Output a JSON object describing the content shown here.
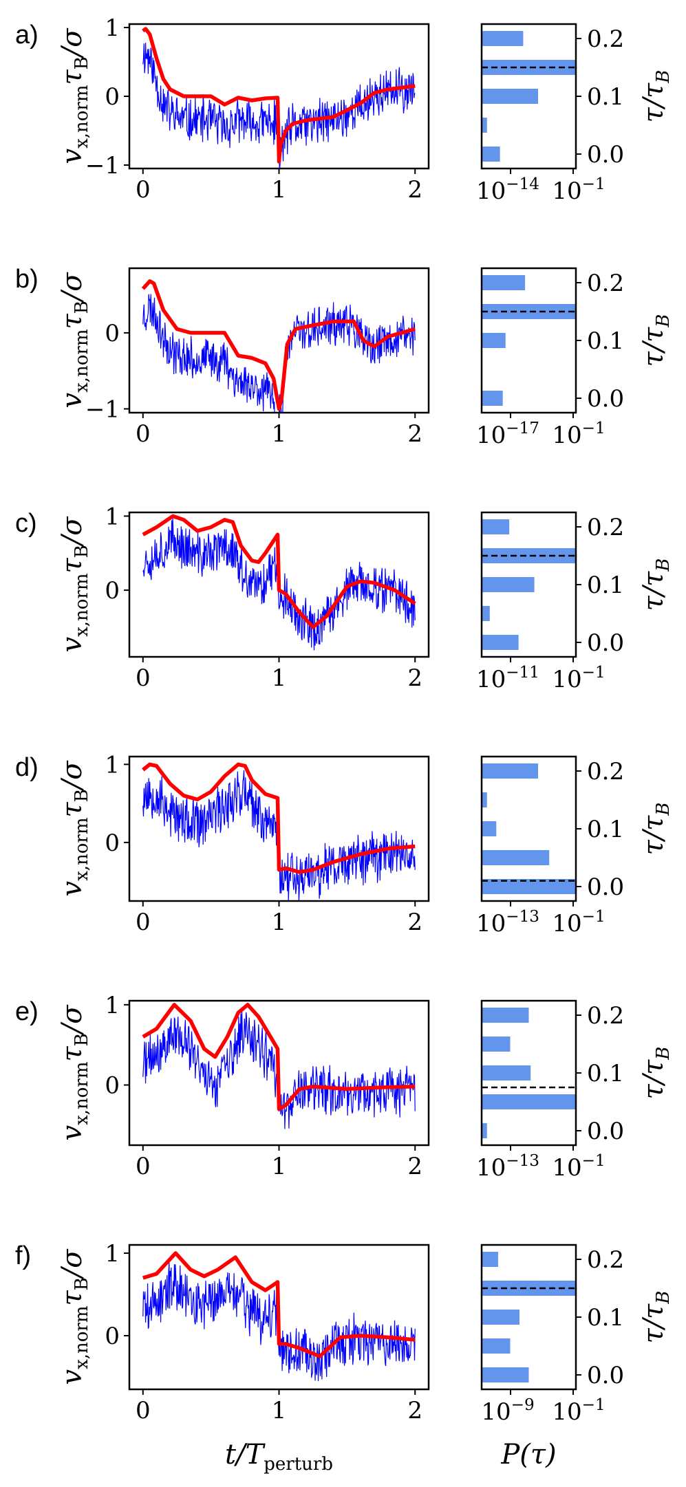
{
  "colors": {
    "noise": "#0000ff",
    "fit": "#ff0000",
    "bar": "#6495ed"
  },
  "chart_data": [
    {
      "type": "line",
      "label": "a)",
      "ylabel": "v_{x,norm} τ_B / σ",
      "xlabel": "",
      "xlim": [
        -0.1,
        2.1
      ],
      "ylim": [
        -1.05,
        1.05
      ],
      "xticks": [
        0,
        1,
        2
      ],
      "xtick_labels": [
        "0",
        "1",
        "2"
      ],
      "yticks": [
        1,
        0,
        -1
      ],
      "ytick_labels": [
        "1",
        "0",
        "−1"
      ],
      "fit": {
        "x": [
          0,
          0.02,
          0.05,
          0.1,
          0.15,
          0.2,
          0.3,
          0.5,
          0.6,
          0.7,
          0.8,
          0.9,
          0.99,
          1.0,
          1.01,
          1.05,
          1.1,
          1.2,
          1.4,
          1.6,
          1.7,
          1.8,
          2.0
        ],
        "y": [
          0.95,
          0.98,
          0.9,
          0.55,
          0.25,
          0.1,
          0.0,
          0.0,
          -0.12,
          -0.02,
          -0.06,
          -0.03,
          -0.02,
          -0.95,
          -0.72,
          -0.5,
          -0.4,
          -0.35,
          -0.3,
          -0.1,
          0.05,
          0.1,
          0.15
        ]
      },
      "noise": {
        "amplitude": 0.3,
        "seed": 11
      },
      "histogram": {
        "xlabel": "",
        "ylabel": "τ / τ_B",
        "xtick_labels": [
          "10^{−14}",
          "10^{−1}"
        ],
        "yticks": [
          0.2,
          0.1,
          0.0
        ],
        "ytick_labels": [
          "0.2",
          "0.1",
          "0.0"
        ],
        "tau": [
          0.0,
          0.05,
          0.1,
          0.15,
          0.2
        ],
        "bar_frac": [
          0.19,
          0.05,
          0.6,
          1.0,
          0.44
        ],
        "dashed_tau": 0.15,
        "ylim": [
          -0.025,
          0.225
        ]
      }
    },
    {
      "type": "line",
      "label": "b)",
      "ylabel": "v_{x,norm} τ_B / σ",
      "xlabel": "",
      "xlim": [
        -0.1,
        2.1
      ],
      "ylim": [
        -1.05,
        0.85
      ],
      "xticks": [
        0,
        1,
        2
      ],
      "xtick_labels": [
        "0",
        "1",
        "2"
      ],
      "yticks": [
        0,
        -1
      ],
      "ytick_labels": [
        "0",
        "−1"
      ],
      "fit": {
        "x": [
          0,
          0.05,
          0.08,
          0.15,
          0.25,
          0.35,
          0.6,
          0.7,
          0.8,
          0.9,
          0.96,
          1.0,
          1.02,
          1.06,
          1.12,
          1.25,
          1.4,
          1.55,
          1.62,
          1.7,
          1.8,
          2.0
        ],
        "y": [
          0.58,
          0.68,
          0.65,
          0.3,
          0.05,
          0.0,
          0.0,
          -0.3,
          -0.33,
          -0.4,
          -0.6,
          -1.0,
          -0.85,
          -0.15,
          0.05,
          0.1,
          0.15,
          0.15,
          -0.1,
          -0.18,
          -0.05,
          0.05
        ]
      },
      "noise": {
        "amplitude": 0.25,
        "seed": 23
      },
      "histogram": {
        "xlabel": "",
        "ylabel": "τ / τ_B",
        "xtick_labels": [
          "10^{−17}",
          "10^{−1}"
        ],
        "yticks": [
          0.2,
          0.1,
          0.0
        ],
        "ytick_labels": [
          "0.2",
          "0.1",
          "0.0"
        ],
        "tau": [
          0.0,
          0.1,
          0.15,
          0.2
        ],
        "bar_frac": [
          0.22,
          0.25,
          1.0,
          0.46
        ],
        "dashed_tau": 0.15,
        "ylim": [
          -0.025,
          0.225
        ]
      }
    },
    {
      "type": "line",
      "label": "c)",
      "ylabel": "v_{x,norm} τ_B / σ",
      "xlabel": "",
      "xlim": [
        -0.1,
        2.1
      ],
      "ylim": [
        -0.9,
        1.05
      ],
      "xticks": [
        0,
        1,
        2
      ],
      "xtick_labels": [
        "0",
        "1",
        "2"
      ],
      "yticks": [
        1,
        0
      ],
      "ytick_labels": [
        "1",
        "0"
      ],
      "fit": {
        "x": [
          0,
          0.1,
          0.22,
          0.3,
          0.4,
          0.5,
          0.6,
          0.66,
          0.72,
          0.8,
          0.85,
          0.9,
          0.99,
          1.0,
          1.05,
          1.15,
          1.25,
          1.35,
          1.5,
          1.6,
          1.7,
          1.85,
          2.0
        ],
        "y": [
          0.75,
          0.85,
          1.0,
          0.95,
          0.8,
          0.85,
          0.95,
          0.92,
          0.6,
          0.4,
          0.38,
          0.5,
          0.75,
          0.0,
          -0.05,
          -0.3,
          -0.5,
          -0.35,
          0.05,
          0.12,
          0.1,
          0.0,
          -0.18
        ]
      },
      "noise": {
        "amplitude": 0.28,
        "seed": 37
      },
      "histogram": {
        "xlabel": "",
        "ylabel": "τ / τ_B",
        "xtick_labels": [
          "10^{−11}",
          "10^{−1}"
        ],
        "yticks": [
          0.2,
          0.1,
          0.0
        ],
        "ytick_labels": [
          "0.2",
          "0.1",
          "0.0"
        ],
        "tau": [
          0.0,
          0.05,
          0.1,
          0.15,
          0.2
        ],
        "bar_frac": [
          0.39,
          0.08,
          0.56,
          1.0,
          0.29
        ],
        "dashed_tau": 0.15,
        "ylim": [
          -0.025,
          0.225
        ]
      }
    },
    {
      "type": "line",
      "label": "d)",
      "ylabel": "v_{x,norm} τ_B / σ",
      "xlabel": "",
      "xlim": [
        -0.1,
        2.1
      ],
      "ylim": [
        -0.75,
        1.1
      ],
      "xticks": [
        0,
        1,
        2
      ],
      "xtick_labels": [
        "0",
        "1",
        "2"
      ],
      "yticks": [
        1,
        0
      ],
      "ytick_labels": [
        "1",
        "0"
      ],
      "fit": {
        "x": [
          0,
          0.05,
          0.1,
          0.2,
          0.3,
          0.4,
          0.5,
          0.6,
          0.7,
          0.75,
          0.8,
          0.9,
          0.99,
          1.0,
          1.05,
          1.15,
          1.25,
          1.4,
          1.6,
          1.8,
          2.0
        ],
        "y": [
          0.93,
          1.0,
          0.98,
          0.75,
          0.6,
          0.55,
          0.65,
          0.85,
          1.0,
          0.98,
          0.8,
          0.62,
          0.57,
          -0.35,
          -0.33,
          -0.38,
          -0.35,
          -0.25,
          -0.15,
          -0.08,
          -0.05
        ]
      },
      "noise": {
        "amplitude": 0.3,
        "seed": 53
      },
      "histogram": {
        "xlabel": "",
        "ylabel": "τ / τ_B",
        "xtick_labels": [
          "10^{−13}",
          "10^{−1}"
        ],
        "yticks": [
          0.2,
          0.1,
          0.0
        ],
        "ytick_labels": [
          "0.2",
          "0.1",
          "0.0"
        ],
        "tau": [
          0.0,
          0.05,
          0.1,
          0.15,
          0.2
        ],
        "bar_frac": [
          1.0,
          0.72,
          0.15,
          0.05,
          0.6
        ],
        "dashed_tau": 0.01,
        "ylim": [
          -0.025,
          0.225
        ]
      }
    },
    {
      "type": "line",
      "label": "e)",
      "ylabel": "v_{x,norm} τ_B / σ",
      "xlabel": "",
      "xlim": [
        -0.1,
        2.1
      ],
      "ylim": [
        -0.75,
        1.05
      ],
      "xticks": [
        0,
        1,
        2
      ],
      "xtick_labels": [
        "0",
        "1",
        "2"
      ],
      "yticks": [
        1,
        0
      ],
      "ytick_labels": [
        "1",
        "0"
      ],
      "fit": {
        "x": [
          0,
          0.1,
          0.23,
          0.35,
          0.45,
          0.53,
          0.62,
          0.7,
          0.77,
          0.85,
          0.92,
          0.99,
          1.0,
          1.05,
          1.15,
          1.25,
          1.5,
          1.75,
          2.0
        ],
        "y": [
          0.6,
          0.7,
          1.0,
          0.8,
          0.45,
          0.35,
          0.6,
          0.9,
          1.0,
          0.85,
          0.65,
          0.45,
          -0.3,
          -0.25,
          -0.05,
          -0.02,
          -0.05,
          -0.03,
          -0.02
        ]
      },
      "noise": {
        "amplitude": 0.28,
        "seed": 71
      },
      "histogram": {
        "xlabel": "",
        "ylabel": "τ / τ_B",
        "xtick_labels": [
          "10^{−13}",
          "10^{−1}"
        ],
        "yticks": [
          0.2,
          0.1,
          0.0
        ],
        "ytick_labels": [
          "0.2",
          "0.1",
          "0.0"
        ],
        "tau": [
          0.0,
          0.05,
          0.1,
          0.15,
          0.2
        ],
        "bar_frac": [
          0.05,
          1.0,
          0.52,
          0.3,
          0.5
        ],
        "dashed_tau": 0.075,
        "ylim": [
          -0.025,
          0.225
        ]
      }
    },
    {
      "type": "line",
      "label": "f)",
      "ylabel": "v_{x,norm} τ_B / σ",
      "xlabel": "t / T_perturb",
      "xlim": [
        -0.1,
        2.1
      ],
      "ylim": [
        -0.65,
        1.1
      ],
      "xticks": [
        0,
        1,
        2
      ],
      "xtick_labels": [
        "0",
        "1",
        "2"
      ],
      "yticks": [
        1,
        0
      ],
      "ytick_labels": [
        "1",
        "0"
      ],
      "fit": {
        "x": [
          0,
          0.1,
          0.24,
          0.35,
          0.45,
          0.55,
          0.68,
          0.8,
          0.9,
          0.99,
          1.0,
          1.05,
          1.15,
          1.3,
          1.45,
          1.6,
          1.8,
          2.0
        ],
        "y": [
          0.7,
          0.75,
          1.0,
          0.8,
          0.72,
          0.8,
          0.95,
          0.65,
          0.55,
          0.65,
          -0.1,
          -0.1,
          -0.15,
          -0.25,
          -0.02,
          0.0,
          -0.02,
          -0.05
        ]
      },
      "noise": {
        "amplitude": 0.28,
        "seed": 89
      },
      "histogram": {
        "xlabel": "P(τ)",
        "ylabel": "τ / τ_B",
        "xtick_labels": [
          "10^{−9}",
          "10^{−1}"
        ],
        "yticks": [
          0.2,
          0.1,
          0.0
        ],
        "ytick_labels": [
          "0.2",
          "0.1",
          "0.0"
        ],
        "tau": [
          0.0,
          0.05,
          0.1,
          0.15,
          0.2
        ],
        "bar_frac": [
          0.5,
          0.3,
          0.4,
          1.0,
          0.17
        ],
        "dashed_tau": 0.15,
        "ylim": [
          -0.025,
          0.225
        ]
      }
    }
  ]
}
